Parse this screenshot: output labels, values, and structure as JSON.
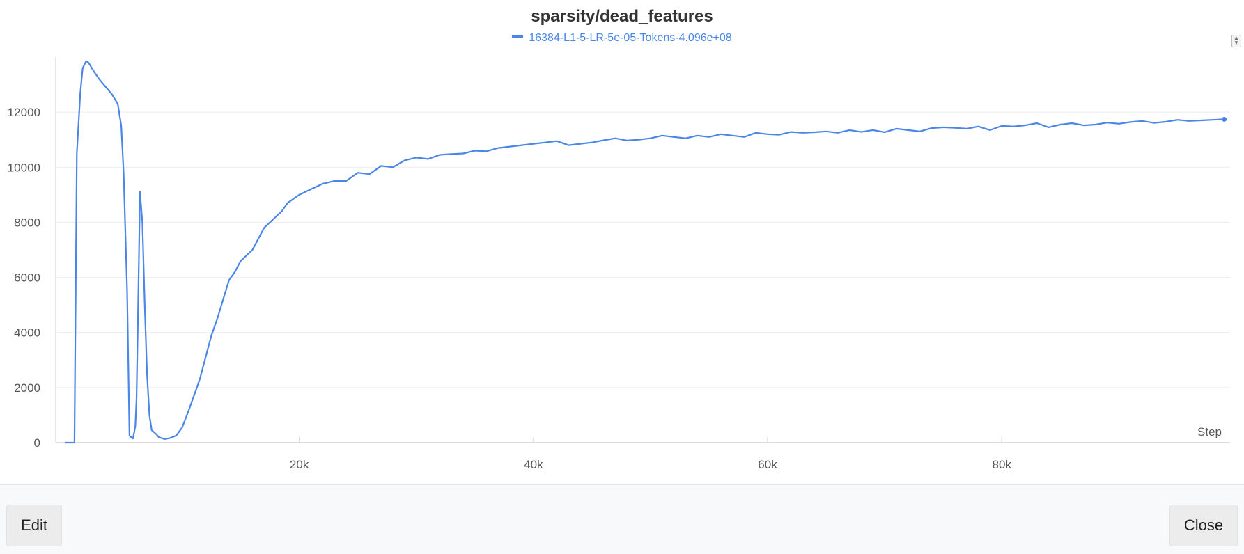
{
  "chart_data": {
    "type": "line",
    "title": "sparsity/dead_features",
    "xlabel": "Step",
    "ylabel": "",
    "xlim": [
      -800,
      99500
    ],
    "ylim": [
      0,
      14000
    ],
    "xticks": [
      20000,
      40000,
      60000,
      80000
    ],
    "xtick_labels": [
      "20k",
      "40k",
      "60k",
      "80k"
    ],
    "yticks": [
      0,
      2000,
      4000,
      6000,
      8000,
      10000,
      12000
    ],
    "ytick_labels": [
      "0",
      "2000",
      "4000",
      "6000",
      "8000",
      "10000",
      "12000"
    ],
    "grid": true,
    "legend_position": "top-center",
    "series": [
      {
        "name": "16384-L1-5-LR-5e-05-Tokens-4.096e+08",
        "color": "#4a86e8",
        "x": [
          0,
          800,
          1000,
          1300,
          1500,
          1800,
          2000,
          2500,
          3000,
          3500,
          4000,
          4500,
          4800,
          5000,
          5300,
          5500,
          5800,
          6000,
          6100,
          6200,
          6400,
          6600,
          6800,
          7000,
          7200,
          7400,
          7600,
          7800,
          8000,
          8500,
          9000,
          9500,
          10000,
          10500,
          11000,
          11500,
          12000,
          12500,
          13000,
          13500,
          14000,
          14500,
          15000,
          15500,
          16000,
          16500,
          17000,
          17500,
          18000,
          18500,
          19000,
          20000,
          21000,
          22000,
          23000,
          24000,
          25000,
          26000,
          27000,
          28000,
          29000,
          30000,
          31000,
          32000,
          33000,
          34000,
          35000,
          36000,
          37000,
          38000,
          39000,
          40000,
          41000,
          42000,
          43000,
          44000,
          45000,
          46000,
          47000,
          48000,
          49000,
          50000,
          51000,
          52000,
          53000,
          54000,
          55000,
          56000,
          57000,
          58000,
          59000,
          60000,
          61000,
          62000,
          63000,
          64000,
          65000,
          66000,
          67000,
          68000,
          69000,
          70000,
          71000,
          72000,
          73000,
          74000,
          75000,
          76000,
          77000,
          78000,
          79000,
          80000,
          81000,
          82000,
          83000,
          84000,
          85000,
          86000,
          87000,
          88000,
          89000,
          90000,
          91000,
          92000,
          93000,
          94000,
          95000,
          96000,
          97000,
          98000,
          99000
        ],
        "y": [
          0,
          0,
          10500,
          12700,
          13600,
          13850,
          13800,
          13450,
          13150,
          12900,
          12650,
          12300,
          11500,
          9800,
          5500,
          250,
          150,
          600,
          1600,
          4000,
          9100,
          8000,
          5000,
          2500,
          1000,
          450,
          380,
          300,
          200,
          130,
          170,
          260,
          550,
          1100,
          1700,
          2300,
          3100,
          3900,
          4500,
          5200,
          5900,
          6200,
          6600,
          6800,
          7000,
          7400,
          7800,
          8000,
          8200,
          8400,
          8700,
          9000,
          9200,
          9400,
          9500,
          9500,
          9800,
          9750,
          10050,
          10000,
          10250,
          10350,
          10300,
          10450,
          10480,
          10500,
          10600,
          10580,
          10700,
          10750,
          10800,
          10850,
          10900,
          10950,
          10800,
          10850,
          10900,
          10980,
          11050,
          10970,
          11000,
          11050,
          11150,
          11100,
          11050,
          11150,
          11100,
          11200,
          11150,
          11100,
          11250,
          11200,
          11180,
          11280,
          11250,
          11270,
          11300,
          11250,
          11350,
          11280,
          11350,
          11270,
          11400,
          11350,
          11300,
          11420,
          11450,
          11430,
          11400,
          11480,
          11350,
          11500,
          11480,
          11520,
          11600,
          11450,
          11550,
          11600,
          11520,
          11550,
          11620,
          11580,
          11640,
          11680,
          11610,
          11650,
          11720,
          11680,
          11700,
          11720,
          11740
        ]
      }
    ]
  },
  "footer": {
    "edit_label": "Edit",
    "close_label": "Close"
  },
  "controls": {
    "sort_icon": "sort-arrows-icon"
  }
}
